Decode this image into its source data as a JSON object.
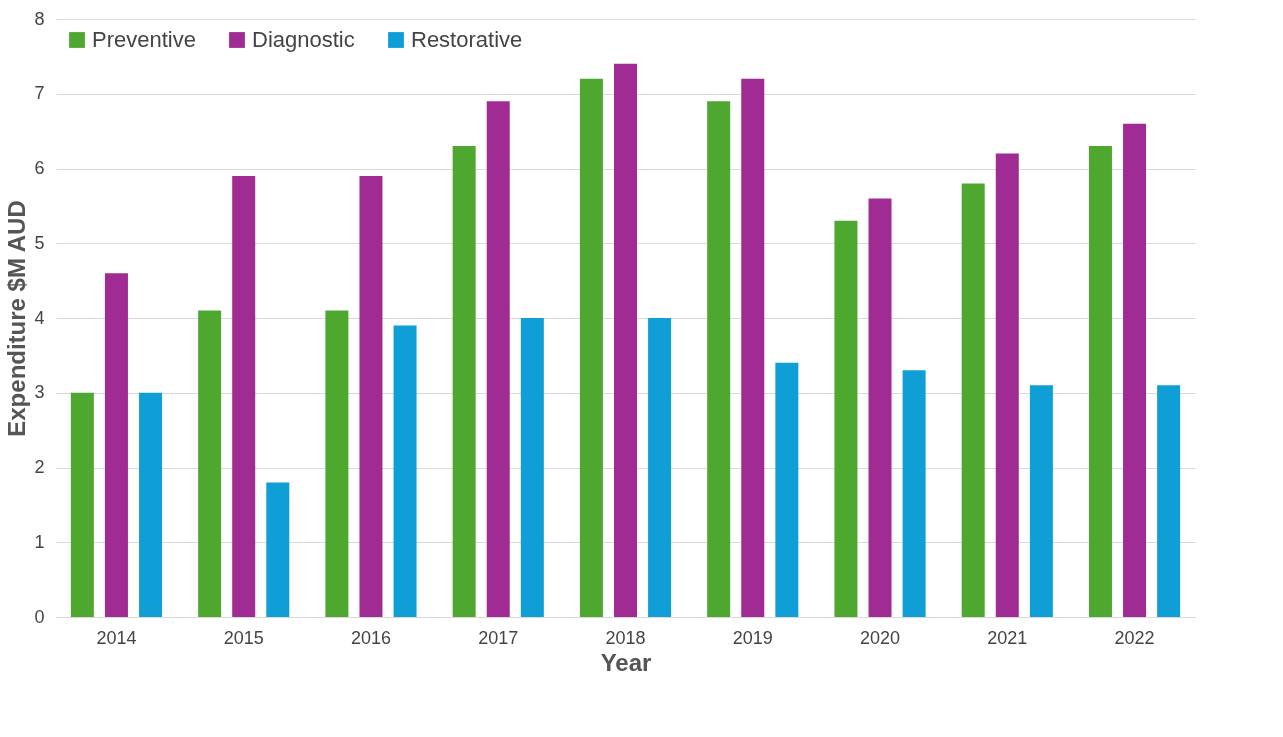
{
  "chart_data": {
    "type": "bar",
    "xlabel": "Year",
    "ylabel": "Expenditure $M AUD",
    "categories": [
      "2014",
      "2015",
      "2016",
      "2017",
      "2018",
      "2019",
      "2020",
      "2021",
      "2022"
    ],
    "series": [
      {
        "name": "Preventive",
        "color": "#4ea72e",
        "values": [
          3.0,
          4.1,
          4.1,
          6.3,
          7.2,
          6.9,
          5.3,
          5.8,
          6.3
        ]
      },
      {
        "name": "Diagnostic",
        "color": "#a02b93",
        "values": [
          4.6,
          5.9,
          5.9,
          6.9,
          7.4,
          7.2,
          5.6,
          6.2,
          6.6
        ]
      },
      {
        "name": "Restorative",
        "color": "#0f9ed5",
        "values": [
          3.0,
          1.8,
          3.9,
          4.0,
          4.0,
          3.4,
          3.3,
          3.1,
          3.1
        ]
      }
    ],
    "ylim": [
      0,
      8
    ],
    "yticks": [
      0,
      1,
      2,
      3,
      4,
      5,
      6,
      7,
      8
    ],
    "grid": "y",
    "legend": "top left"
  }
}
